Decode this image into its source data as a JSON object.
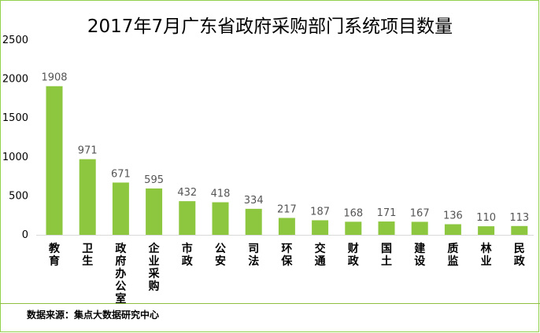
{
  "chart_data": {
    "type": "bar",
    "title": "2017年7月广东省政府采购部门系统项目数量",
    "categories": [
      "教育",
      "卫生",
      "政府办公室",
      "企业采购",
      "市政",
      "公安",
      "司法",
      "环保",
      "交通",
      "财政",
      "国土",
      "建设",
      "质监",
      "林业",
      "民政"
    ],
    "values": [
      1908,
      971,
      671,
      595,
      432,
      418,
      334,
      217,
      187,
      168,
      171,
      167,
      136,
      110,
      113
    ],
    "ylim": [
      0,
      2500
    ],
    "yticks": [
      0,
      500,
      1000,
      1500,
      2000,
      2500
    ],
    "grid": false,
    "bar_color": "#8dc63f",
    "data_labels": true
  },
  "source": "数据来源：集点大数据研究中心",
  "colors": {
    "border": "#92d050",
    "bar": "#8dc63f"
  }
}
